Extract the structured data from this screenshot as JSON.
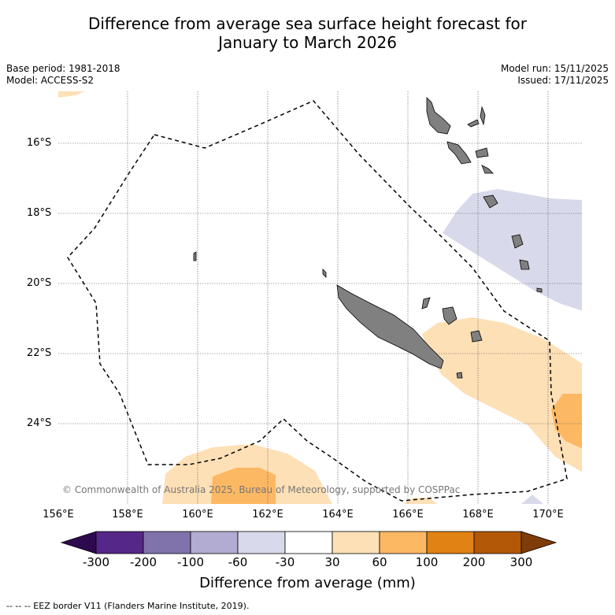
{
  "title": {
    "line1": "Difference from average sea surface height forecast for",
    "line2": "January to March 2026"
  },
  "meta_left": {
    "base_period": "Base period: 1981-2018",
    "model": "Model: ACCESS-S2"
  },
  "meta_right": {
    "model_run": "Model run: 15/11/2025",
    "issued": "Issued: 17/11/2025"
  },
  "copyright": "© Commonwealth of Australia 2025, Bureau of Meteorology, supported by COSPPac",
  "lat_labels": [
    "16°S",
    "18°S",
    "20°S",
    "22°S",
    "24°S"
  ],
  "lon_labels": [
    "156°E",
    "158°E",
    "160°E",
    "162°E",
    "164°E",
    "166°E",
    "168°E",
    "170°E"
  ],
  "colorbar": {
    "ticks": [
      "-300",
      "-200",
      "-100",
      "-60",
      "-30",
      "30",
      "60",
      "100",
      "200",
      "300"
    ],
    "colors": [
      "#2d0a4e",
      "#542788",
      "#8073ac",
      "#b2abd2",
      "#d8daeb",
      "#ffffff",
      "#fee0b6",
      "#fdb863",
      "#e08214",
      "#b35806",
      "#7f3b08"
    ],
    "title": "Difference from average (mm)"
  },
  "footer": "--  --  -- EEZ border V11 (Flanders Marine Institute, 2019)."
}
